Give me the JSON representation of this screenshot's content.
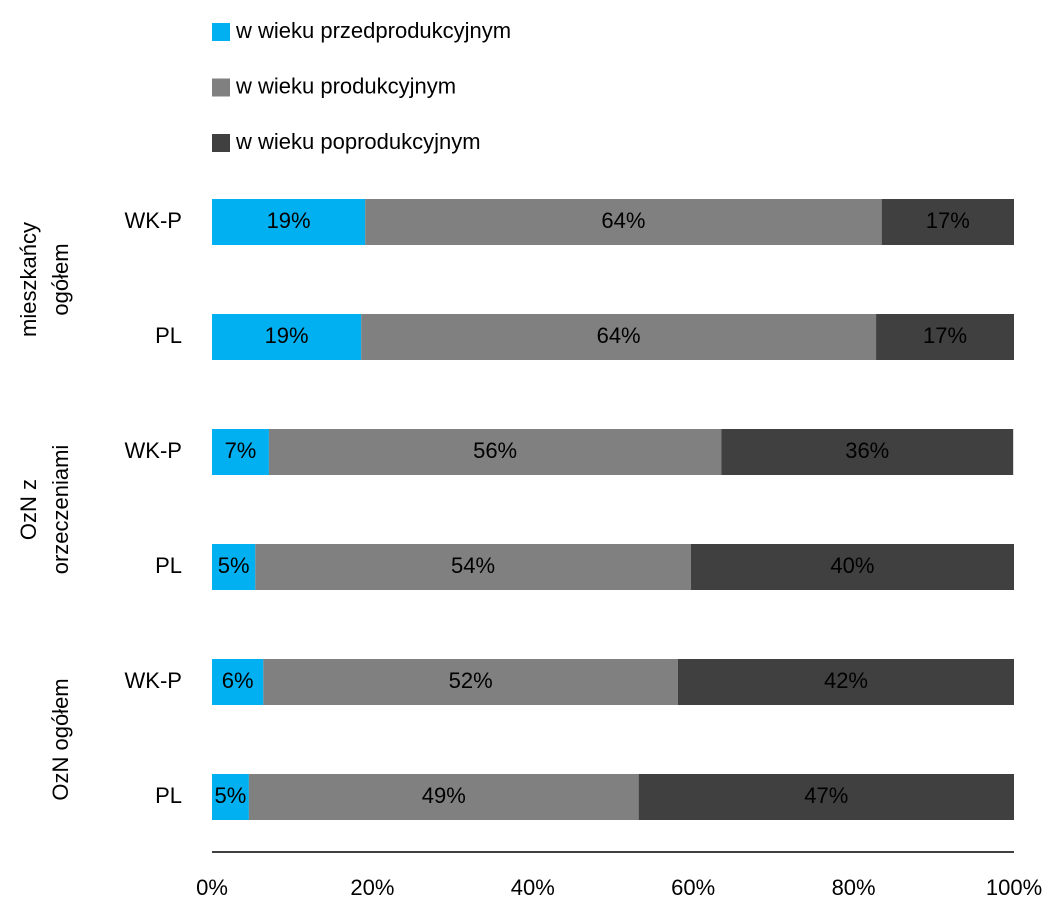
{
  "chart_data": {
    "type": "stacked-barh",
    "groups": [
      {
        "label": [
          "mieszkańcy",
          "ogółem"
        ],
        "categories": [
          "WK-P",
          "PL"
        ]
      },
      {
        "label": [
          "OzN z",
          "orzeczeniami"
        ],
        "categories": [
          "WK-P",
          "PL"
        ]
      },
      {
        "label": [
          "OzN ogółem"
        ],
        "categories": [
          "WK-P",
          "PL"
        ]
      }
    ],
    "series": [
      {
        "name": "w wieku przedprodukcyjnym",
        "color": "#00b0f0",
        "values": [
          19.1,
          18.6,
          7.1,
          5.4,
          6.4,
          4.6
        ],
        "value_labels": [
          "19%",
          "19%",
          "7%",
          "5%",
          "6%",
          "5%"
        ]
      },
      {
        "name": "w wieku produkcyjnym",
        "color": "#808080",
        "values": [
          64.4,
          64.2,
          56.4,
          54.3,
          51.7,
          48.6
        ],
        "value_labels": [
          "64%",
          "64%",
          "56%",
          "54%",
          "52%",
          "49%"
        ]
      },
      {
        "name": "w wieku poprodukcyjnym",
        "color": "#404040",
        "values": [
          16.5,
          17.2,
          36.4,
          40.3,
          41.9,
          46.8
        ],
        "value_labels": [
          "17%",
          "17%",
          "36%",
          "40%",
          "42%",
          "47%"
        ]
      }
    ],
    "xlim": [
      0,
      100
    ],
    "xticks": [
      {
        "value": 0,
        "label": "0%"
      },
      {
        "value": 20,
        "label": "20%"
      },
      {
        "value": 40,
        "label": "40%"
      },
      {
        "value": 60,
        "label": "60%"
      },
      {
        "value": 80,
        "label": "80%"
      },
      {
        "value": 100,
        "label": "100%"
      }
    ],
    "legend": "top-left"
  }
}
